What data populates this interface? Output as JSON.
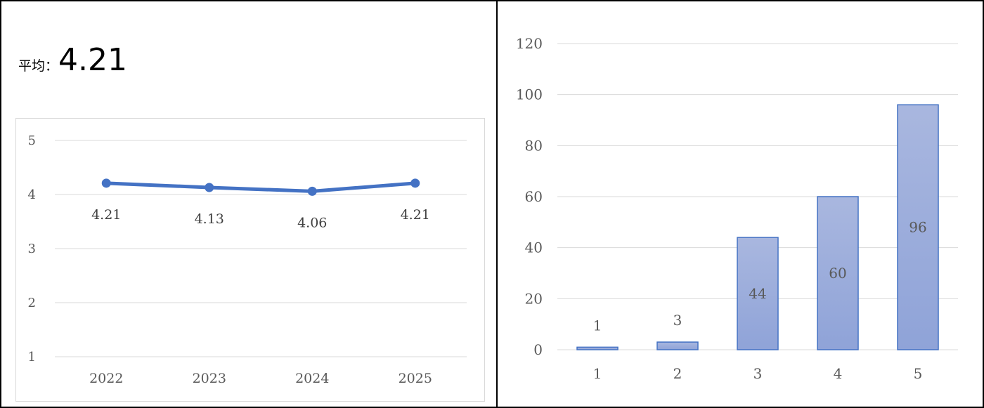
{
  "summary": {
    "label": "平均：",
    "value": "4.21"
  },
  "chart_data": [
    {
      "type": "line",
      "x": [
        "2022",
        "2023",
        "2024",
        "2025"
      ],
      "series": [
        {
          "values": [
            4.21,
            4.13,
            4.06,
            4.21
          ]
        }
      ],
      "data_labels": [
        "4.21",
        "4.13",
        "4.06",
        "4.21"
      ],
      "yticks": [
        "1",
        "2",
        "3",
        "4",
        "5"
      ],
      "ylim": [
        1,
        5
      ],
      "grid": true,
      "color": "#4472c4"
    },
    {
      "type": "bar",
      "categories": [
        "1",
        "2",
        "3",
        "4",
        "5"
      ],
      "values": [
        1,
        3,
        44,
        60,
        96
      ],
      "data_labels": [
        "1",
        "3",
        "44",
        "60",
        "96"
      ],
      "yticks": [
        "0",
        "20",
        "40",
        "60",
        "80",
        "100",
        "120"
      ],
      "ylim": [
        0,
        120
      ],
      "grid": true,
      "bar_fill_top": "#a9b7df",
      "bar_fill_bottom": "#8fa3d8",
      "bar_border": "#4472c4"
    }
  ]
}
